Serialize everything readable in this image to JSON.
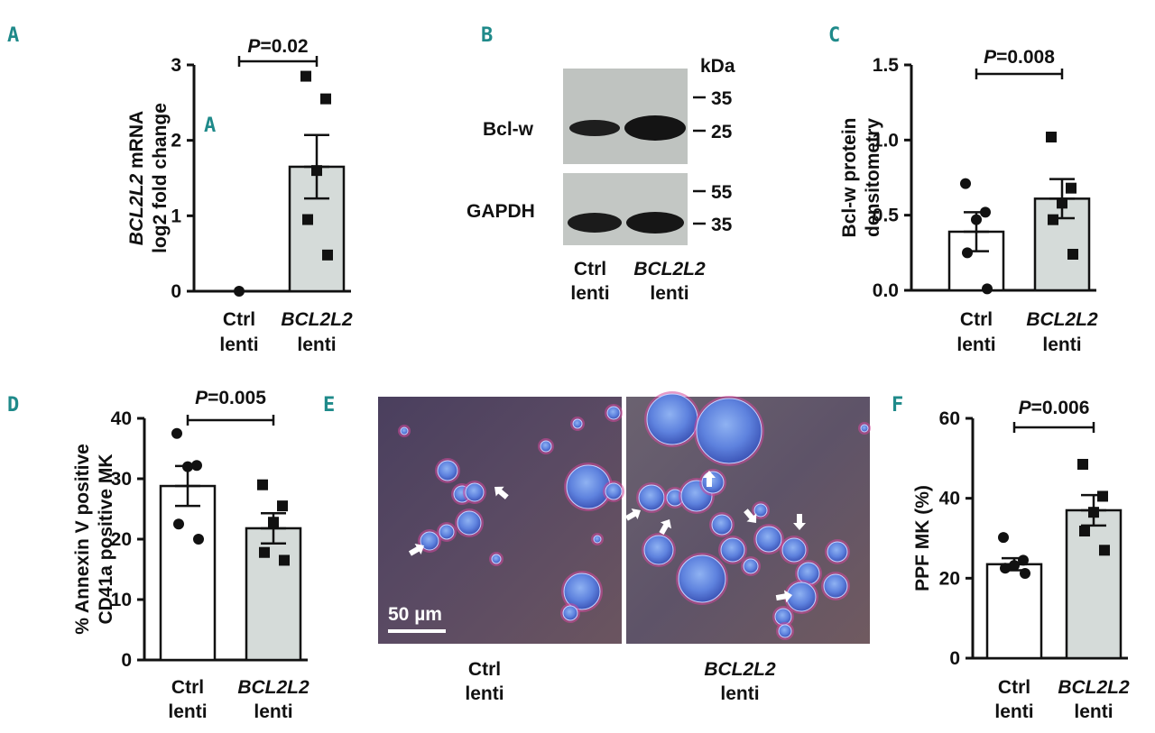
{
  "panel_labels": {
    "A": "A",
    "A2": "A",
    "B": "B",
    "C": "C",
    "D": "D",
    "E": "E",
    "F": "F"
  },
  "colors": {
    "bar_ctrl": "#ffffff",
    "bar_bcl": "#d5dbd9",
    "stroke": "#111111",
    "panel_label": "#1f8a8a"
  },
  "chart_data": [
    {
      "id": "A",
      "type": "bar",
      "categories": [
        [
          "Ctrl",
          "lenti"
        ],
        [
          "BCL2L2",
          "lenti"
        ]
      ],
      "ylabel": [
        "BCL2L2 mRNA",
        "log2 fold change"
      ],
      "ylim": [
        0,
        3
      ],
      "yticks": [
        0,
        1,
        2,
        3
      ],
      "means": [
        0,
        1.65
      ],
      "sem": [
        0,
        0.42
      ],
      "points": [
        [
          0
        ],
        [
          2.85,
          2.55,
          1.6,
          0.95,
          0.48
        ]
      ],
      "pvalue": "P=0.02"
    },
    {
      "id": "C",
      "type": "bar",
      "categories": [
        [
          "Ctrl",
          "lenti"
        ],
        [
          "BCL2L2",
          "lenti"
        ]
      ],
      "ylabel": [
        "Bcl-w protein",
        "densitometry"
      ],
      "ylim": [
        0,
        1.5
      ],
      "yticks": [
        "0.0",
        "0.5",
        "1.0",
        "1.5"
      ],
      "means": [
        0.39,
        0.61
      ],
      "sem": [
        0.13,
        0.13
      ],
      "points": [
        [
          0.71,
          0.52,
          0.47,
          0.25,
          0.01
        ],
        [
          1.02,
          0.68,
          0.58,
          0.47,
          0.24
        ]
      ],
      "pvalue": "P=0.008"
    },
    {
      "id": "D",
      "type": "bar",
      "categories": [
        [
          "Ctrl",
          "lenti"
        ],
        [
          "BCL2L2",
          "lenti"
        ]
      ],
      "ylabel": [
        "% Annexin V positive",
        "CD41a positive MK"
      ],
      "ylim": [
        0,
        40
      ],
      "yticks": [
        0,
        10,
        20,
        30,
        40
      ],
      "means": [
        28.8,
        21.8
      ],
      "sem": [
        3.3,
        2.5
      ],
      "points": [
        [
          37.5,
          32.2,
          32,
          22.5,
          20
        ],
        [
          29,
          25.5,
          22.8,
          17.8,
          16.5
        ]
      ],
      "pvalue": "P=0.005"
    },
    {
      "id": "F",
      "type": "bar",
      "categories": [
        [
          "Ctrl",
          "lenti"
        ],
        [
          "BCL2L2",
          "lenti"
        ]
      ],
      "ylabel": [
        "PPF MK (%)"
      ],
      "ylim": [
        0,
        60
      ],
      "yticks": [
        0,
        20,
        40,
        60
      ],
      "means": [
        23.5,
        37
      ],
      "sem": [
        1.5,
        3.8
      ],
      "points": [
        [
          30.2,
          24.5,
          23.2,
          22.5,
          21.2
        ],
        [
          48.5,
          40.5,
          36.5,
          31.8,
          27
        ]
      ],
      "pvalue": "P=0.006"
    }
  ],
  "blot": {
    "unit": "kDa",
    "rows": [
      {
        "label": "Bcl-w",
        "markers": [
          "35",
          "25"
        ]
      },
      {
        "label": "GAPDH",
        "markers": [
          "55",
          "35"
        ]
      }
    ],
    "lanes": [
      [
        "Ctrl",
        "lenti"
      ],
      [
        "BCL2L2",
        "lenti"
      ]
    ]
  },
  "micrograph": {
    "scale_label": "50 µm",
    "captions": [
      [
        "Ctrl",
        "lenti"
      ],
      [
        "BCL2L2",
        "lenti"
      ]
    ]
  }
}
